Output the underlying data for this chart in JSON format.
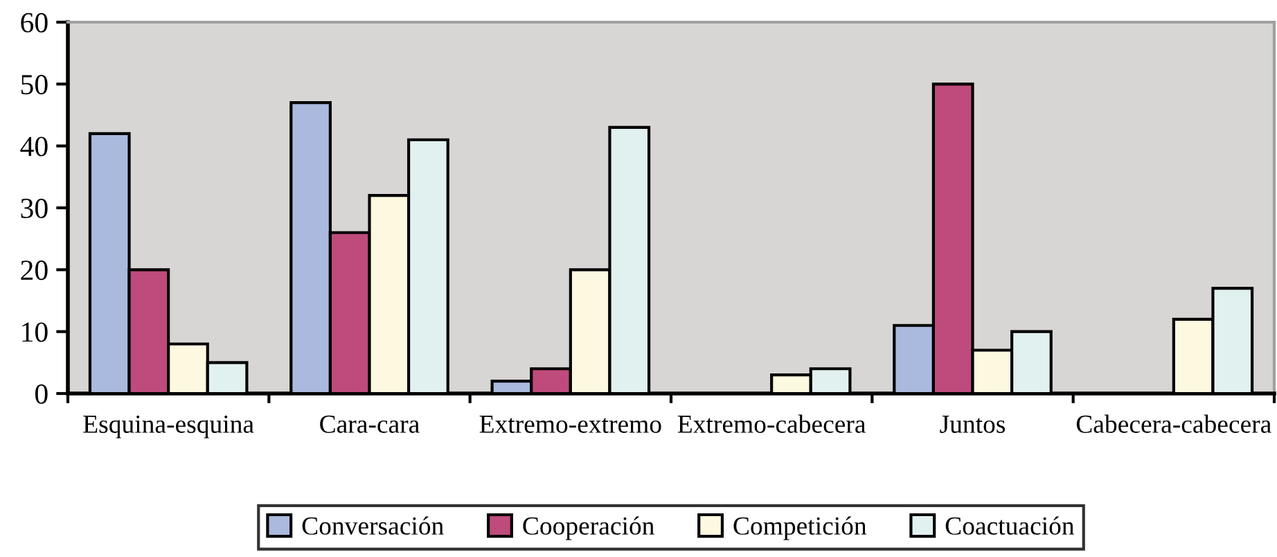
{
  "chart_data": {
    "type": "bar",
    "categories": [
      "Esquina-esquina",
      "Cara-cara",
      "Extremo-extremo",
      "Extremo-cabecera",
      "Juntos",
      "Cabecera-cabecera"
    ],
    "series": [
      {
        "name": "Conversación",
        "color": "#aab9de",
        "values": [
          42,
          47,
          2,
          null,
          11,
          null
        ]
      },
      {
        "name": "Cooperación",
        "color": "#be4b7b",
        "values": [
          20,
          26,
          4,
          null,
          50,
          null
        ]
      },
      {
        "name": "Competición",
        "color": "#fdf8e0",
        "values": [
          8,
          32,
          20,
          3,
          7,
          12
        ]
      },
      {
        "name": "Coactuación",
        "color": "#e1f1f0",
        "values": [
          5,
          41,
          43,
          4,
          10,
          17
        ]
      }
    ],
    "ylim": [
      0,
      60
    ],
    "yticks": [
      0,
      10,
      20,
      30,
      40,
      50,
      60
    ],
    "legend": "bottom"
  }
}
